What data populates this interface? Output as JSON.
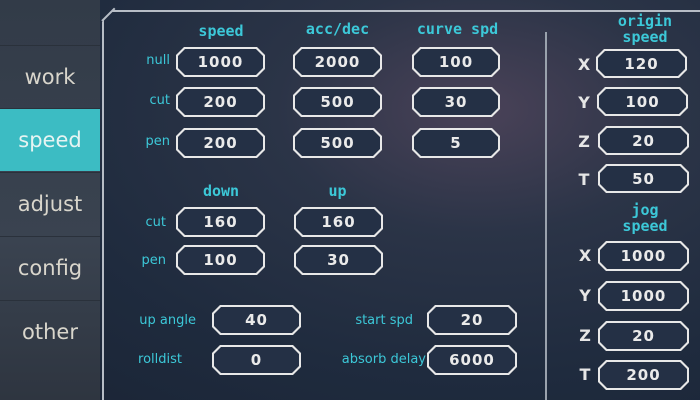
{
  "sidebar": {
    "tabs": [
      {
        "label": "work"
      },
      {
        "label": "speed",
        "active": true
      },
      {
        "label": "adjust"
      },
      {
        "label": "config"
      },
      {
        "label": "other"
      }
    ]
  },
  "speed_table": {
    "headers": [
      "speed",
      "acc/dec",
      "curve spd"
    ],
    "rows": [
      {
        "label": "null",
        "values": [
          "1000",
          "2000",
          "100"
        ]
      },
      {
        "label": "cut",
        "values": [
          "200",
          "500",
          "30"
        ]
      },
      {
        "label": "pen",
        "values": [
          "200",
          "500",
          "5"
        ]
      }
    ]
  },
  "updown_table": {
    "headers": [
      "down",
      "up"
    ],
    "rows": [
      {
        "label": "cut",
        "values": [
          "160",
          "160"
        ]
      },
      {
        "label": "pen",
        "values": [
          "100",
          "30"
        ]
      }
    ]
  },
  "misc": {
    "up_angle_label": "up angle",
    "up_angle": "40",
    "rolldist_label": "rolldist",
    "rolldist": "0",
    "start_spd_label": "start spd",
    "start_spd": "20",
    "absorb_delay_label": "absorb delay",
    "absorb_delay": "6000"
  },
  "origin_speed": {
    "title_1": "origin",
    "title_2": "speed",
    "axes": [
      {
        "axis": "X",
        "value": "120"
      },
      {
        "axis": "Y",
        "value": "100"
      },
      {
        "axis": "Z",
        "value": "20"
      },
      {
        "axis": "T",
        "value": "50"
      }
    ]
  },
  "jog_speed": {
    "title_1": "jog",
    "title_2": "speed",
    "axes": [
      {
        "axis": "X",
        "value": "1000"
      },
      {
        "axis": "Y",
        "value": "1000"
      },
      {
        "axis": "Z",
        "value": "20"
      },
      {
        "axis": "T",
        "value": "200"
      }
    ]
  },
  "colors": {
    "accent": "#3cbcc3",
    "label": "#3cc8d8",
    "background": "#1f2b3e"
  }
}
